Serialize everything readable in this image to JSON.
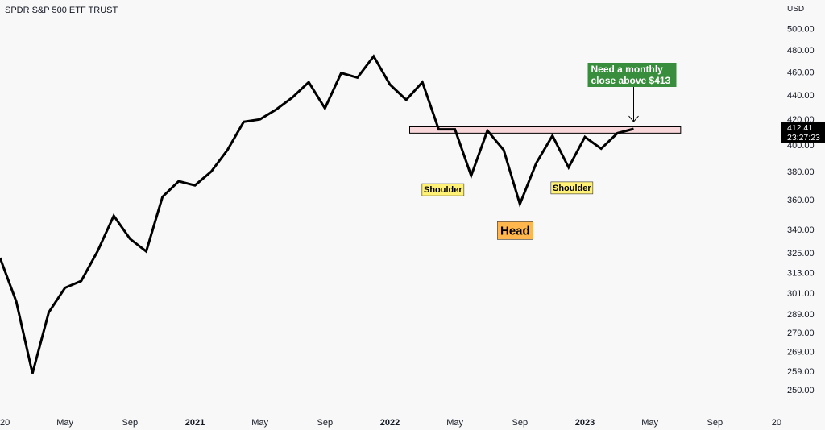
{
  "chart_data": {
    "type": "line",
    "title": "SPDR S&P 500 ETF TRUST",
    "currency": "USD",
    "y_scale": "log",
    "ylim": [
      242,
      520
    ],
    "y_ticks": [
      "500.00",
      "480.00",
      "460.00",
      "440.00",
      "420.00",
      "400.00",
      "380.00",
      "360.00",
      "340.00",
      "325.00",
      "313.00",
      "301.00",
      "289.00",
      "279.00",
      "269.00",
      "259.00",
      "250.00"
    ],
    "y_tick_values": [
      500,
      480,
      460,
      440,
      420,
      400,
      380,
      360,
      340,
      325,
      313,
      301,
      289,
      279,
      269,
      259,
      250
    ],
    "x_ticks": [
      "20",
      "May",
      "Sep",
      "2021",
      "May",
      "Sep",
      "2022",
      "May",
      "Sep",
      "2023",
      "May",
      "Sep",
      "20"
    ],
    "x_tick_months": [
      "2020-01",
      "2020-05",
      "2020-09",
      "2021-01",
      "2021-05",
      "2021-09",
      "2022-01",
      "2022-05",
      "2022-09",
      "2023-01",
      "2023-05",
      "2023-09",
      "2024-01"
    ],
    "x_range": [
      "2020-01",
      "2024-01"
    ],
    "grid": false,
    "legend": "none",
    "series": [
      {
        "color": "#000000",
        "points": [
          [
            "2020-01",
            322
          ],
          [
            "2020-02",
            296
          ],
          [
            "2020-03",
            258
          ],
          [
            "2020-04",
            290
          ],
          [
            "2020-05",
            304
          ],
          [
            "2020-06",
            308
          ],
          [
            "2020-07",
            326
          ],
          [
            "2020-08",
            349
          ],
          [
            "2020-09",
            334
          ],
          [
            "2020-10",
            326
          ],
          [
            "2020-11",
            362
          ],
          [
            "2020-12",
            373
          ],
          [
            "2021-01",
            370
          ],
          [
            "2021-02",
            380
          ],
          [
            "2021-03",
            396
          ],
          [
            "2021-04",
            418
          ],
          [
            "2021-05",
            420
          ],
          [
            "2021-06",
            428
          ],
          [
            "2021-07",
            438
          ],
          [
            "2021-08",
            451
          ],
          [
            "2021-09",
            429
          ],
          [
            "2021-10",
            459
          ],
          [
            "2021-11",
            455
          ],
          [
            "2021-12",
            474
          ],
          [
            "2022-01",
            449
          ],
          [
            "2022-02",
            436
          ],
          [
            "2022-03",
            451
          ],
          [
            "2022-04",
            412
          ],
          [
            "2022-05",
            412
          ],
          [
            "2022-06",
            377
          ],
          [
            "2022-07",
            411
          ],
          [
            "2022-08",
            396
          ],
          [
            "2022-09",
            357
          ],
          [
            "2022-10",
            386
          ],
          [
            "2022-11",
            407
          ],
          [
            "2022-12",
            383
          ],
          [
            "2023-01",
            406
          ],
          [
            "2023-02",
            397
          ],
          [
            "2023-03",
            409
          ],
          [
            "2023-04",
            412.41
          ]
        ]
      }
    ],
    "resistance_zone": {
      "low": 409,
      "high": 414,
      "from": "2022-04",
      "to": "2023-06",
      "color": "#f8d7da",
      "border": "#000000"
    },
    "annotations": [
      {
        "text": "Shoulder",
        "style": "yellow",
        "at": [
          "2022-06",
          377
        ]
      },
      {
        "text": "Head",
        "style": "orange",
        "at": [
          "2022-09",
          357
        ]
      },
      {
        "text": "Shoulder",
        "style": "yellow",
        "at": [
          "2022-12",
          383
        ]
      },
      {
        "text": "Need a monthly close above $413",
        "lines": [
          "Need a monthly",
          "close above $413"
        ],
        "style": "green",
        "at": [
          "2023-04",
          413
        ]
      }
    ],
    "last_price": {
      "value": "412.41",
      "time": "23:27:23",
      "at": 412.41
    },
    "colors": {
      "yellow_bg": "#fff176",
      "orange_bg": "#ffb74d",
      "green_bg": "#388e3c",
      "line": "#000000",
      "price_tag": "#000000"
    }
  }
}
